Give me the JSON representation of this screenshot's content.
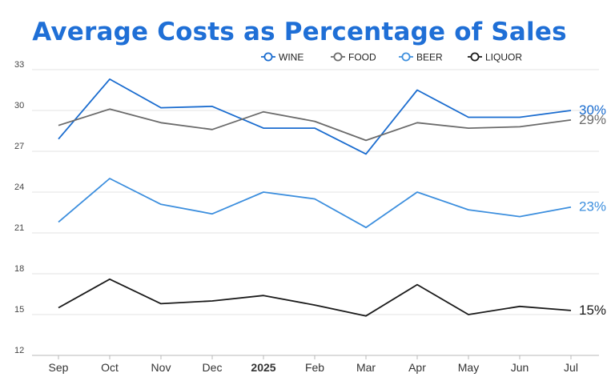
{
  "chart_data": {
    "type": "line",
    "title": "Average Costs as Percentage of Sales",
    "xlabel": "",
    "ylabel": "",
    "categories": [
      "Sep",
      "Oct",
      "Nov",
      "Dec",
      "2025",
      "Feb",
      "Mar",
      "Apr",
      "May",
      "Jun",
      "Jul"
    ],
    "bold_categories": [
      "2025"
    ],
    "ylim": [
      12,
      33
    ],
    "yticks": [
      12,
      15,
      18,
      21,
      24,
      27,
      30,
      33
    ],
    "grid": true,
    "legend_position": "top",
    "series": [
      {
        "name": "WINE",
        "color": "#1a6ccf",
        "end_label": "30%",
        "values": [
          27.9,
          32.3,
          30.2,
          30.3,
          28.7,
          28.7,
          26.8,
          31.5,
          29.5,
          29.5,
          30.0
        ]
      },
      {
        "name": "FOOD",
        "color": "#6b6b6b",
        "end_label": "29%",
        "values": [
          28.9,
          30.1,
          29.1,
          28.6,
          29.9,
          29.2,
          27.8,
          29.1,
          28.7,
          28.8,
          29.3
        ]
      },
      {
        "name": "BEER",
        "color": "#3d8fde",
        "end_label": "23%",
        "values": [
          21.8,
          25.0,
          23.1,
          22.4,
          24.0,
          23.5,
          21.4,
          24.0,
          22.7,
          22.2,
          22.9
        ]
      },
      {
        "name": "LIQUOR",
        "color": "#1a1a1a",
        "end_label": "15%",
        "values": [
          15.5,
          17.6,
          15.8,
          16.0,
          16.4,
          15.7,
          14.9,
          17.2,
          15.0,
          15.6,
          15.3
        ]
      }
    ]
  }
}
